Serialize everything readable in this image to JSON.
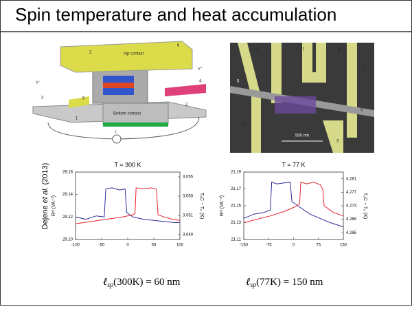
{
  "header": {
    "title": "Spin temperature and heat accumulation"
  },
  "citation": {
    "author": "Dejene ",
    "etal": "et al.",
    "year": " (2013)"
  },
  "device_diagram": {
    "top_label": "top contact",
    "bottom_label": "Bottom contact",
    "v_minus": "V⁻",
    "v_plus": "V⁺",
    "current": "I",
    "terminals": [
      "2",
      "8",
      "3",
      "5",
      "4",
      "1",
      "2"
    ]
  },
  "sem_image": {
    "terminals": [
      "2",
      "7",
      "8",
      "1",
      "5",
      "4",
      "6",
      "3"
    ],
    "scale": "500 nm"
  },
  "plots": [
    {
      "title": "T = 300 K",
      "ylabel": "Rⁿˡ (VA⁻²)",
      "y2label": "T₂C − T₀ (K)",
      "xlim": [
        -100,
        100
      ],
      "xticks": [
        -100,
        -50,
        0,
        50,
        100
      ],
      "ylim": [
        29.1,
        29.16
      ],
      "yticks": [
        {
          "value": 29.1,
          "label": "29.10"
        },
        29.12,
        29.14,
        29.16
      ],
      "y2lim": [
        3.0485,
        3.0555
      ],
      "y2ticks": [
        3.049,
        3.051,
        3.053,
        3.055
      ],
      "series": [
        {
          "color": "#2b2b9a",
          "x": [
            -100,
            -80,
            -60,
            -45,
            -42,
            -30,
            -15,
            -5,
            -2,
            10,
            30,
            50,
            70,
            90,
            100
          ],
          "values": [
            29.12,
            29.118,
            29.121,
            29.12,
            29.145,
            29.146,
            29.144,
            29.145,
            29.124,
            29.12,
            29.118,
            29.117,
            29.116,
            29.115,
            29.115
          ]
        },
        {
          "color": "#e8202a",
          "x": [
            -100,
            -70,
            -40,
            -10,
            10,
            14,
            16,
            30,
            45,
            55,
            58,
            70,
            85,
            100
          ],
          "values": [
            29.114,
            29.116,
            29.118,
            29.12,
            29.122,
            29.123,
            29.146,
            29.145,
            29.146,
            29.145,
            29.122,
            29.12,
            29.118,
            29.117
          ]
        }
      ]
    },
    {
      "title": "T = 77 K",
      "ylabel": "Rⁿˡ (VA⁻²)",
      "y2label": "T₂C − T₀ (K)",
      "xlim": [
        -150,
        150
      ],
      "xticks": [
        -150,
        -75,
        0,
        75,
        150
      ],
      "ylim": [
        21.11,
        21.19
      ],
      "yticks": [
        21.11,
        21.13,
        21.15,
        21.17,
        21.19
      ],
      "y2lim": [
        4.263,
        4.283
      ],
      "y2ticks": [
        4.265,
        4.269,
        4.273,
        4.277,
        4.281
      ],
      "series": [
        {
          "color": "#2b2b9a",
          "x": [
            -150,
            -120,
            -90,
            -70,
            -66,
            -50,
            -30,
            -10,
            -5,
            20,
            50,
            80,
            110,
            150
          ],
          "values": [
            21.135,
            21.14,
            21.142,
            21.145,
            21.178,
            21.176,
            21.177,
            21.178,
            21.155,
            21.148,
            21.14,
            21.135,
            21.13,
            21.125
          ]
        },
        {
          "color": "#e8202a",
          "x": [
            -150,
            -110,
            -70,
            -30,
            0,
            18,
            22,
            40,
            60,
            80,
            88,
            92,
            120,
            150
          ],
          "values": [
            21.13,
            21.134,
            21.138,
            21.143,
            21.148,
            21.152,
            21.178,
            21.176,
            21.178,
            21.175,
            21.17,
            21.15,
            21.142,
            21.138
          ]
        }
      ]
    }
  ],
  "formulas": [
    {
      "symbol": "ℓ",
      "subscript": "sp",
      "argument": "(300K)",
      "result": " = 60 nm"
    },
    {
      "symbol": "ℓ",
      "subscript": "sp",
      "argument": "(77K)",
      "result": " = 150 nm"
    }
  ]
}
